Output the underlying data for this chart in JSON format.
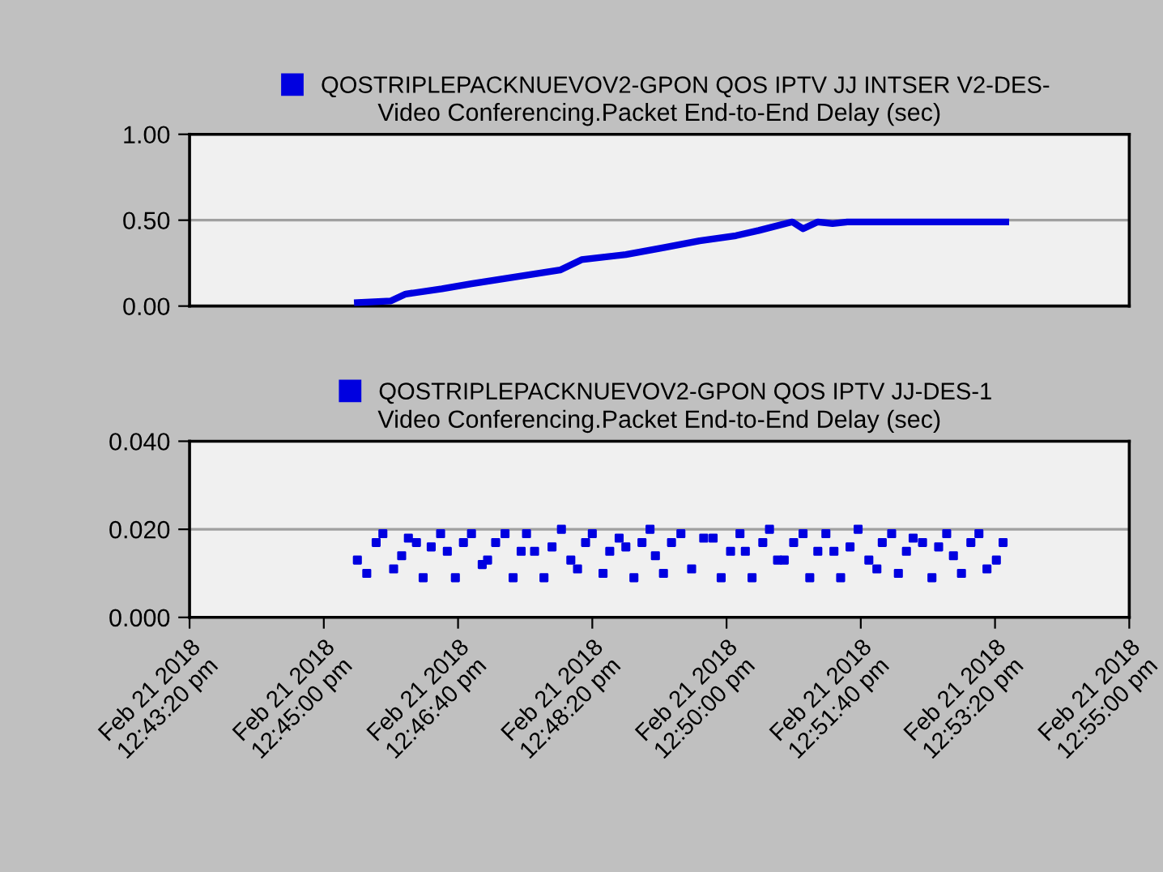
{
  "chart_data": [
    {
      "type": "line",
      "title": "Video Conferencing.Packet End-to-End Delay (sec)",
      "legend": "top",
      "grid": "y",
      "tick_labels": "y",
      "xlim": [
        "2018-02-21T12:43:20",
        "2018-02-21T12:55:00"
      ],
      "ylim": [
        0,
        1
      ],
      "yticks": [
        {
          "value": 0,
          "label": "0.00"
        },
        {
          "value": 0.5,
          "label": "0.50"
        },
        {
          "value": 1,
          "label": "1.00"
        }
      ],
      "series": [
        {
          "name": "QOSTRIPLEPACKNUEVOV2-GPON QOS IPTV JJ INTSER V2-DES-",
          "color": "#0000e0",
          "x": [
            "2018-02-21T12:45:25",
            "2018-02-21T12:45:50",
            "2018-02-21T12:46:01",
            "2018-02-21T12:46:28",
            "2018-02-21T12:46:50",
            "2018-02-21T12:47:23",
            "2018-02-21T12:47:56",
            "2018-02-21T12:48:12",
            "2018-02-21T12:48:45",
            "2018-02-21T12:49:13",
            "2018-02-21T12:49:40",
            "2018-02-21T12:50:07",
            "2018-02-21T12:50:24",
            "2018-02-21T12:50:49",
            "2018-02-21T12:50:57",
            "2018-02-21T12:51:08",
            "2018-02-21T12:51:19",
            "2018-02-21T12:51:30",
            "2018-02-21T12:53:28"
          ],
          "values": [
            0.02,
            0.03,
            0.07,
            0.1,
            0.13,
            0.17,
            0.21,
            0.27,
            0.3,
            0.34,
            0.38,
            0.41,
            0.44,
            0.49,
            0.45,
            0.49,
            0.48,
            0.49,
            0.49
          ]
        }
      ]
    },
    {
      "type": "scatter",
      "title": "Video Conferencing.Packet End-to-End Delay (sec)",
      "legend": "top",
      "grid": "y",
      "marker": "square",
      "xlim": [
        "2018-02-21T12:43:20",
        "2018-02-21T12:55:00"
      ],
      "xticks": [
        {
          "value": "2018-02-21T12:43:20",
          "label": "Feb 21 2018\n12:43:20 pm"
        },
        {
          "value": "2018-02-21T12:45:00",
          "label": "Feb 21 2018\n12:45:00 pm"
        },
        {
          "value": "2018-02-21T12:46:40",
          "label": "Feb 21 2018\n12:46:40 pm"
        },
        {
          "value": "2018-02-21T12:48:20",
          "label": "Feb 21 2018\n12:48:20 pm"
        },
        {
          "value": "2018-02-21T12:50:00",
          "label": "Feb 21 2018\n12:50:00 pm"
        },
        {
          "value": "2018-02-21T12:51:40",
          "label": "Feb 21 2018\n12:51:40 pm"
        },
        {
          "value": "2018-02-21T12:53:20",
          "label": "Feb 21 2018\n12:53:20 pm"
        },
        {
          "value": "2018-02-21T12:55:00",
          "label": "Feb 21 2018\n12:55:00 pm"
        }
      ],
      "ylim": [
        0,
        0.04
      ],
      "yticks": [
        {
          "value": 0,
          "label": "0.000"
        },
        {
          "value": 0.02,
          "label": "0.020"
        },
        {
          "value": 0.04,
          "label": "0.040"
        }
      ],
      "series": [
        {
          "name": "QOSTRIPLEPACKNUEVOV2-GPON QOS IPTV JJ-DES-1",
          "color": "#0000e0",
          "x": [
            "2018-02-21T12:45:25",
            "2018-02-21T12:45:32",
            "2018-02-21T12:45:39",
            "2018-02-21T12:45:44",
            "2018-02-21T12:45:52",
            "2018-02-21T12:45:58",
            "2018-02-21T12:46:03",
            "2018-02-21T12:46:09",
            "2018-02-21T12:46:14",
            "2018-02-21T12:46:20",
            "2018-02-21T12:46:27",
            "2018-02-21T12:46:32",
            "2018-02-21T12:46:38",
            "2018-02-21T12:46:44",
            "2018-02-21T12:46:50",
            "2018-02-21T12:46:58",
            "2018-02-21T12:47:02",
            "2018-02-21T12:47:08",
            "2018-02-21T12:47:15",
            "2018-02-21T12:47:21",
            "2018-02-21T12:47:27",
            "2018-02-21T12:47:31",
            "2018-02-21T12:47:37",
            "2018-02-21T12:47:44",
            "2018-02-21T12:47:50",
            "2018-02-21T12:47:57",
            "2018-02-21T12:48:04",
            "2018-02-21T12:48:09",
            "2018-02-21T12:48:15",
            "2018-02-21T12:48:20",
            "2018-02-21T12:48:28",
            "2018-02-21T12:48:33",
            "2018-02-21T12:48:40",
            "2018-02-21T12:48:45",
            "2018-02-21T12:48:51",
            "2018-02-21T12:48:57",
            "2018-02-21T12:49:03",
            "2018-02-21T12:49:07",
            "2018-02-21T12:49:13",
            "2018-02-21T12:49:19",
            "2018-02-21T12:49:26",
            "2018-02-21T12:49:34",
            "2018-02-21T12:49:43",
            "2018-02-21T12:49:50",
            "2018-02-21T12:49:56",
            "2018-02-21T12:50:03",
            "2018-02-21T12:50:10",
            "2018-02-21T12:50:14",
            "2018-02-21T12:50:19",
            "2018-02-21T12:50:27",
            "2018-02-21T12:50:32",
            "2018-02-21T12:50:38",
            "2018-02-21T12:50:43",
            "2018-02-21T12:50:50",
            "2018-02-21T12:50:57",
            "2018-02-21T12:51:02",
            "2018-02-21T12:51:08",
            "2018-02-21T12:51:14",
            "2018-02-21T12:51:20",
            "2018-02-21T12:51:25",
            "2018-02-21T12:51:32",
            "2018-02-21T12:51:38",
            "2018-02-21T12:51:46",
            "2018-02-21T12:51:52",
            "2018-02-21T12:51:56",
            "2018-02-21T12:52:03",
            "2018-02-21T12:52:08",
            "2018-02-21T12:52:14",
            "2018-02-21T12:52:19",
            "2018-02-21T12:52:26",
            "2018-02-21T12:52:33",
            "2018-02-21T12:52:38",
            "2018-02-21T12:52:44",
            "2018-02-21T12:52:49",
            "2018-02-21T12:52:55",
            "2018-02-21T12:53:02",
            "2018-02-21T12:53:08",
            "2018-02-21T12:53:14",
            "2018-02-21T12:53:21",
            "2018-02-21T12:53:26"
          ],
          "values": [
            0.013,
            0.01,
            0.017,
            0.019,
            0.011,
            0.014,
            0.018,
            0.017,
            0.009,
            0.016,
            0.019,
            0.015,
            0.009,
            0.017,
            0.019,
            0.012,
            0.013,
            0.017,
            0.019,
            0.009,
            0.015,
            0.019,
            0.015,
            0.009,
            0.016,
            0.02,
            0.013,
            0.011,
            0.017,
            0.019,
            0.01,
            0.015,
            0.018,
            0.016,
            0.009,
            0.017,
            0.02,
            0.014,
            0.01,
            0.017,
            0.019,
            0.011,
            0.018,
            0.018,
            0.009,
            0.015,
            0.019,
            0.015,
            0.009,
            0.017,
            0.02,
            0.013,
            0.013,
            0.017,
            0.019,
            0.009,
            0.015,
            0.019,
            0.015,
            0.009,
            0.016,
            0.02,
            0.013,
            0.011,
            0.017,
            0.019,
            0.01,
            0.015,
            0.018,
            0.017,
            0.009,
            0.016,
            0.019,
            0.014,
            0.01,
            0.017,
            0.019,
            0.011,
            0.013,
            0.017
          ]
        }
      ]
    }
  ]
}
